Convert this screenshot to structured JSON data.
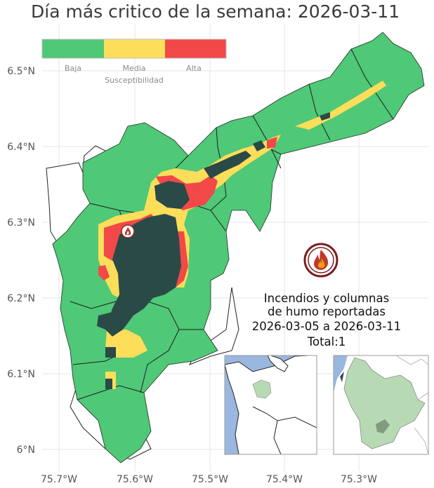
{
  "title": "Día más critico de la semana: 2026-03-11",
  "legend": {
    "title": "Susceptibilidad",
    "items": [
      {
        "label": "Baja",
        "color": "#4fc877"
      },
      {
        "label": "Media",
        "color": "#fcde5a"
      },
      {
        "label": "Alta",
        "color": "#f24848"
      }
    ]
  },
  "axes": {
    "y_ticks": [
      "6.5°N",
      "6.4°N",
      "6.3°N",
      "6.2°N",
      "6.1°N",
      "6°N"
    ],
    "x_ticks": [
      "75.7°W",
      "75.6°W",
      "75.5°W",
      "75.4°W",
      "75.3°W"
    ]
  },
  "info": {
    "line1": "Incendios y columnas",
    "line2": "de humo reportadas",
    "line3": "2026-03-05 a 2026-03-11",
    "line4": "Total:1"
  },
  "icons": {
    "fire_marker": "fire-marker-icon",
    "fire_logo": "fire-logo-icon"
  },
  "colors": {
    "dense": "#2a4a48",
    "water": "#9ab7e0",
    "inset_region": "#b7dab4"
  }
}
